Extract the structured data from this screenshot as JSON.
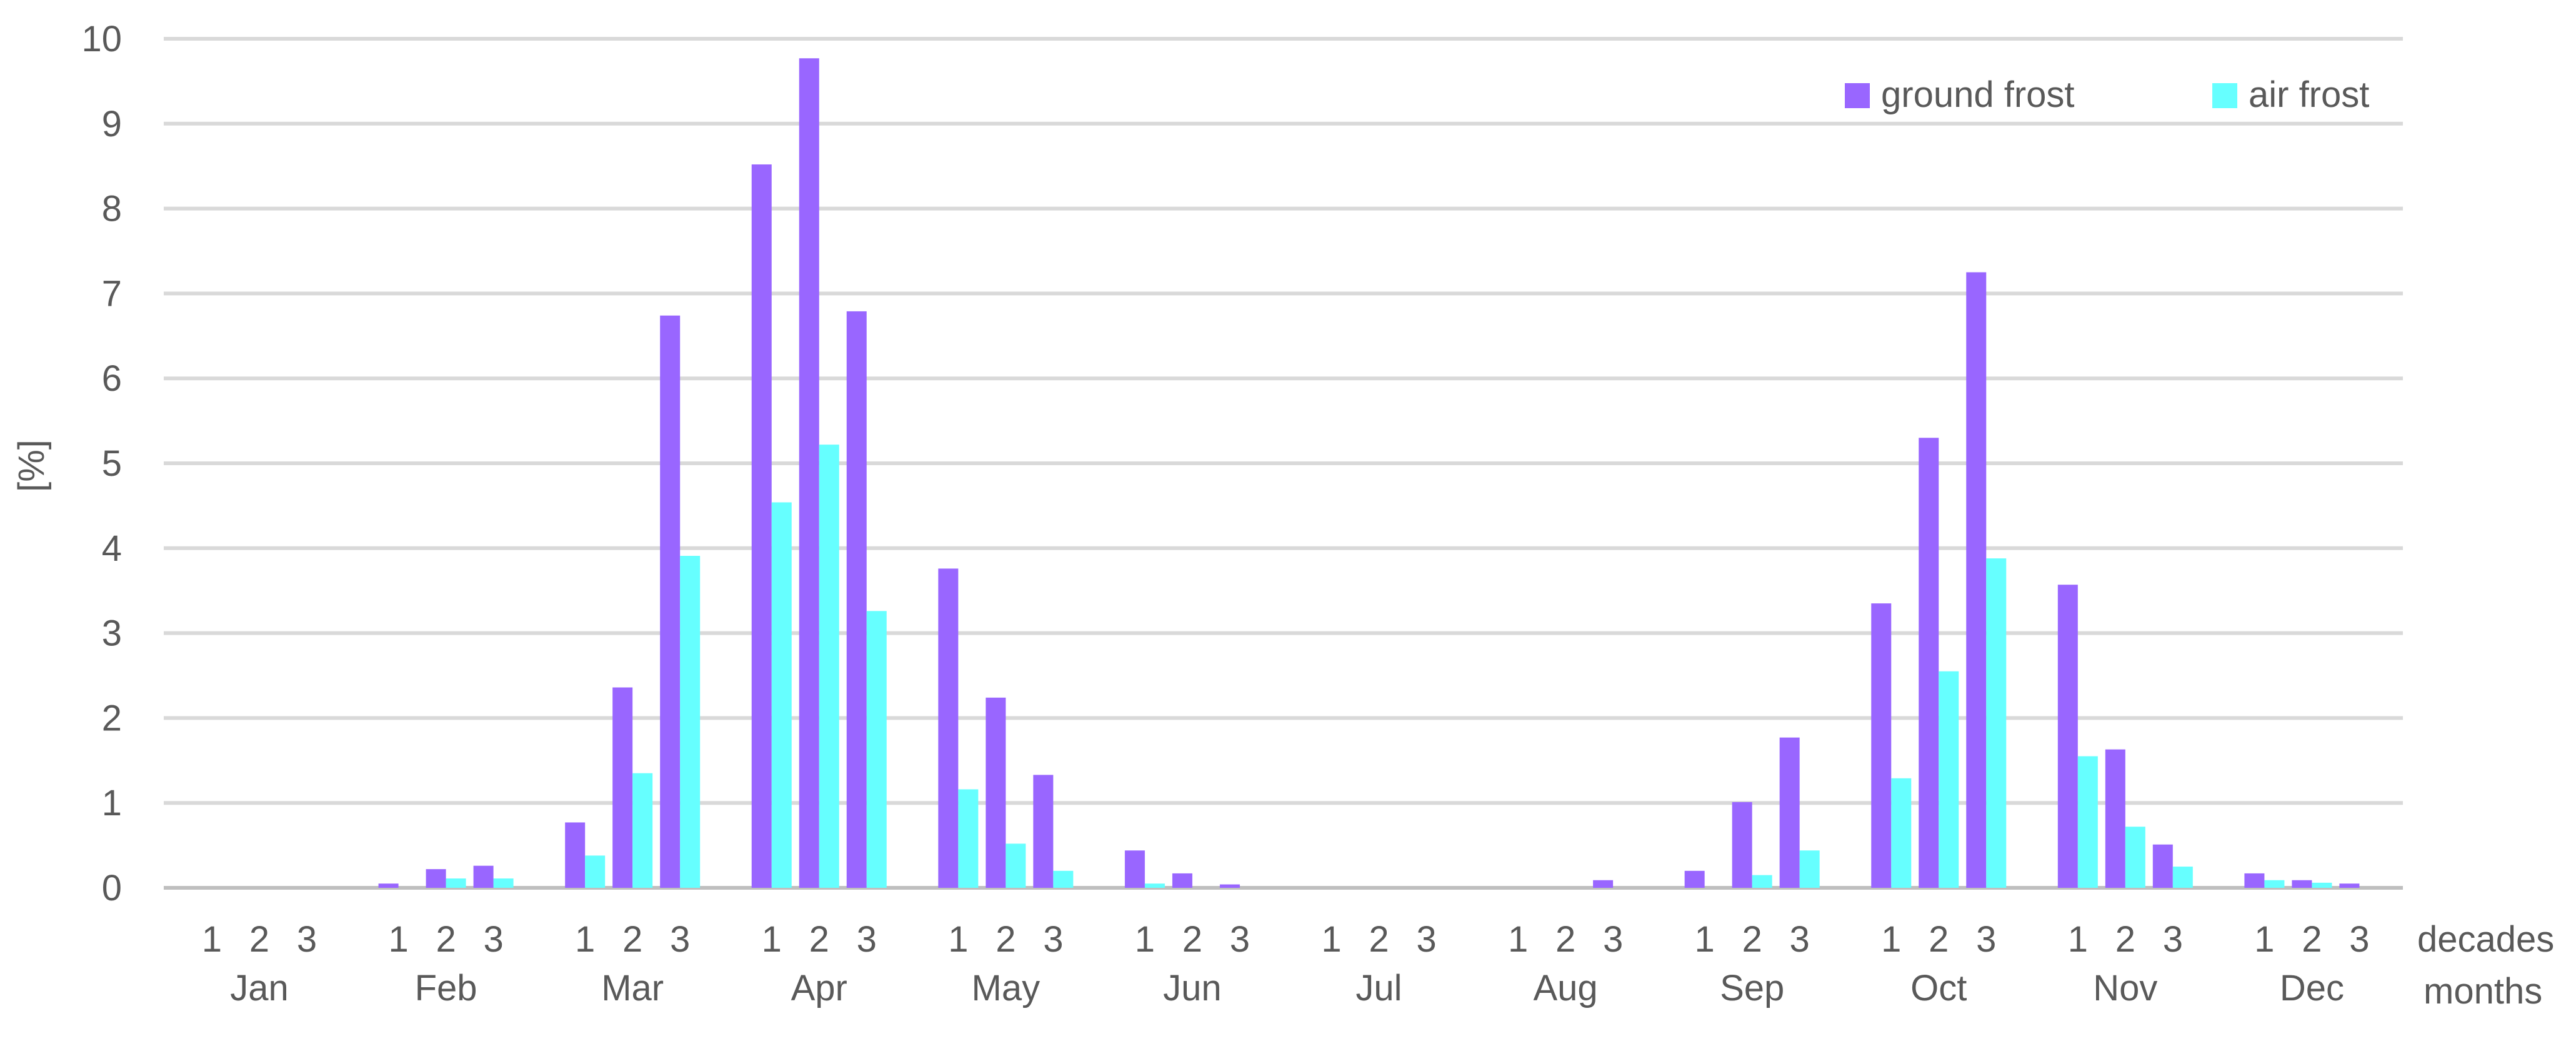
{
  "chart_data": {
    "type": "bar",
    "ylabel": "[%]",
    "ylim": [
      0,
      10
    ],
    "yticks": [
      0,
      1,
      2,
      3,
      4,
      5,
      6,
      7,
      8,
      9,
      10
    ],
    "grid": true,
    "legend_position": "top-right",
    "months": [
      "Jan",
      "Feb",
      "Mar",
      "Apr",
      "May",
      "Jun",
      "Jul",
      "Aug",
      "Sep",
      "Oct",
      "Nov",
      "Dec"
    ],
    "decades": [
      "1",
      "2",
      "3"
    ],
    "x_axis_labels": {
      "decades": "decades",
      "months": "months"
    },
    "series": [
      {
        "name": "ground frost",
        "color": "#9966FF",
        "values": [
          0,
          0,
          0,
          0.05,
          0.22,
          0.26,
          0.77,
          2.36,
          6.74,
          8.52,
          9.77,
          6.79,
          3.76,
          2.24,
          1.33,
          0.44,
          0.17,
          0.04,
          0,
          0,
          0,
          0,
          0,
          0.09,
          0.2,
          1.01,
          1.77,
          3.35,
          5.3,
          7.25,
          3.57,
          1.63,
          0.51,
          0.17,
          0.09,
          0.05
        ]
      },
      {
        "name": "air frost",
        "color": "#66FFFF",
        "values": [
          0,
          0,
          0,
          0,
          0.11,
          0.11,
          0.38,
          1.35,
          3.91,
          4.54,
          5.22,
          3.26,
          1.16,
          0.52,
          0.2,
          0.05,
          0,
          0,
          0,
          0,
          0,
          0,
          0,
          0,
          0,
          0.15,
          0.44,
          1.29,
          2.55,
          3.88,
          1.55,
          0.72,
          0.25,
          0.09,
          0.06,
          0
        ]
      }
    ]
  }
}
